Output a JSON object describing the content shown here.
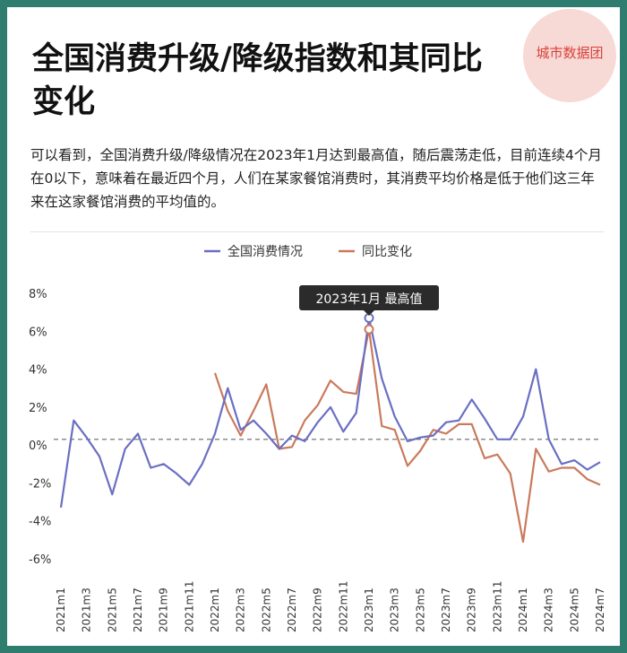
{
  "title": "全国消费升级/降级指数和其同比变化",
  "brand": "城市数据团",
  "description": "可以看到，全国消费升级/降级情况在2023年1月达到最高值，随后震荡走低，目前连续4个月在0以下，意味着在最近四个月，人们在某家餐馆消费时，其消费平均价格是低于他们这三年来在这家餐馆消费的平均值的。",
  "chart_data": {
    "type": "line",
    "x": [
      "2021m1",
      "2021m2",
      "2021m3",
      "2021m4",
      "2021m5",
      "2021m6",
      "2021m7",
      "2021m8",
      "2021m9",
      "2021m10",
      "2021m11",
      "2021m12",
      "2022m1",
      "2022m2",
      "2022m3",
      "2022m4",
      "2022m5",
      "2022m6",
      "2022m7",
      "2022m8",
      "2022m9",
      "2022m10",
      "2022m11",
      "2022m12",
      "2023m1",
      "2023m2",
      "2023m3",
      "2023m4",
      "2023m5",
      "2023m6",
      "2023m7",
      "2023m8",
      "2023m9",
      "2023m10",
      "2023m11",
      "2023m12",
      "2024m1",
      "2024m2",
      "2024m3",
      "2024m4",
      "2024m5",
      "2024m6",
      "2024m7"
    ],
    "xticks": [
      "2021m1",
      "2021m3",
      "2021m5",
      "2021m7",
      "2021m9",
      "2021m11",
      "2022m1",
      "2022m3",
      "2022m5",
      "2022m7",
      "2022m9",
      "2022m11",
      "2023m1",
      "2023m3",
      "2023m5",
      "2023m7",
      "2023m9",
      "2023m11",
      "2024m1",
      "2024m3",
      "2024m5",
      "2024m7"
    ],
    "yticks": [
      8,
      6,
      4,
      2,
      0,
      -2,
      -4,
      -6
    ],
    "ytick_labels": [
      "8%",
      "6%",
      "4%",
      "2%",
      "0%",
      "-2%",
      "-4%",
      "-6%"
    ],
    "ylim": [
      -6,
      8
    ],
    "reference_line": 0.3,
    "series": [
      {
        "name": "全国消费情况",
        "color": "#6a6fc2",
        "values": [
          -3.3,
          1.3,
          0.4,
          -0.6,
          -2.6,
          -0.2,
          0.6,
          -1.2,
          -1.0,
          -1.5,
          -2.1,
          -1.0,
          0.6,
          3.0,
          0.8,
          1.3,
          0.6,
          -0.2,
          0.5,
          0.2,
          1.2,
          2.0,
          0.7,
          1.7,
          6.7,
          3.5,
          1.5,
          0.2,
          0.4,
          0.5,
          1.2,
          1.3,
          2.4,
          1.4,
          0.3,
          0.3,
          1.5,
          4.0,
          0.3,
          -1.0,
          -0.8,
          -1.3,
          -0.9
        ]
      },
      {
        "name": "同比变化",
        "color": "#c97a5c",
        "values": [
          null,
          null,
          null,
          null,
          null,
          null,
          null,
          null,
          null,
          null,
          null,
          null,
          3.8,
          1.8,
          0.5,
          1.8,
          3.2,
          -0.2,
          -0.1,
          1.3,
          2.1,
          3.4,
          2.8,
          2.7,
          6.1,
          1.0,
          0.8,
          -1.1,
          -0.3,
          0.8,
          0.6,
          1.1,
          1.1,
          -0.7,
          -0.5,
          -1.5,
          -5.1,
          -0.2,
          -1.4,
          -1.2,
          -1.2,
          -1.8,
          -2.1
        ]
      }
    ],
    "annotation": {
      "text": "2023年1月 最高值",
      "x_index": 24
    }
  }
}
